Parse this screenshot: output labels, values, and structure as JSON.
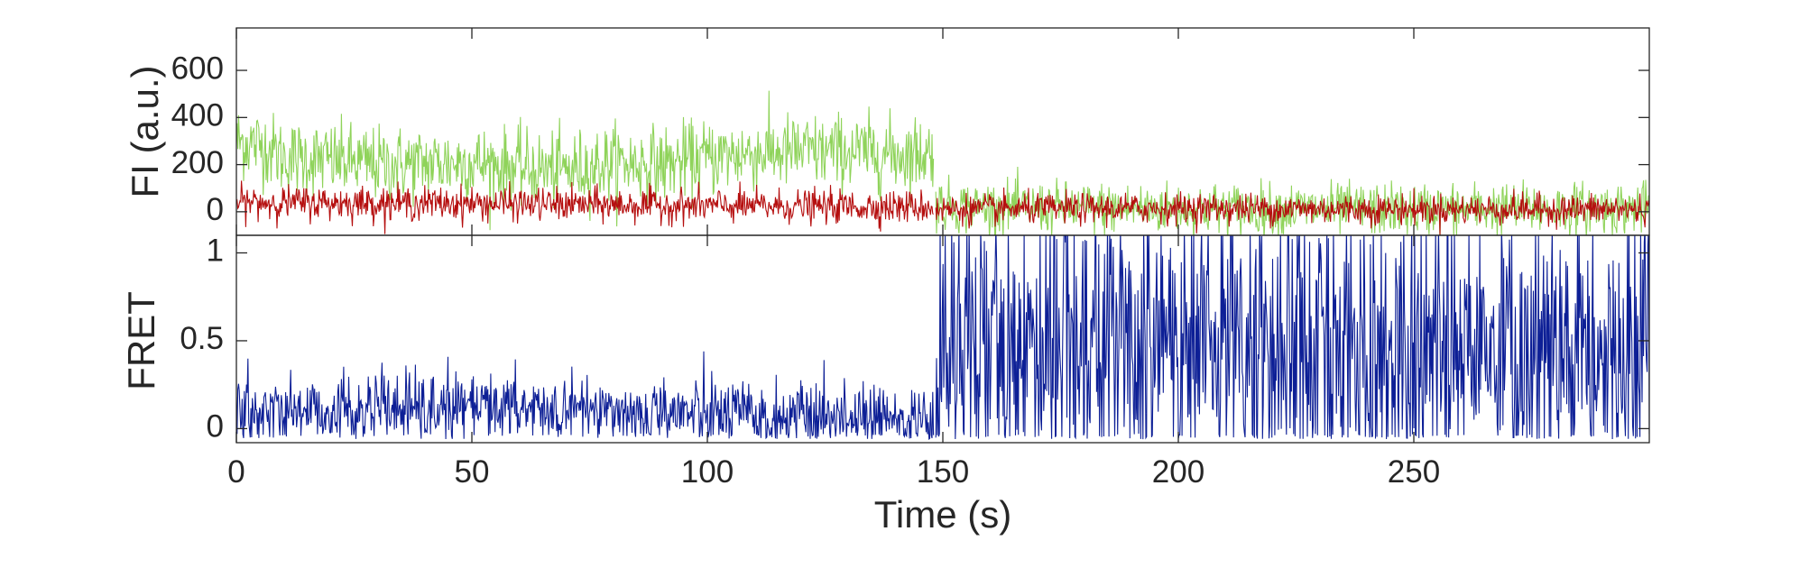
{
  "chart_data": [
    {
      "type": "line",
      "ylabel": "FI (a.u.)",
      "xlabel": "",
      "xlim": [
        0,
        300
      ],
      "ylim": [
        -100,
        780
      ],
      "yticks": [
        0,
        200,
        400,
        600
      ],
      "ytick_labels": [
        "0",
        "200",
        "400",
        "600"
      ],
      "xticks": [
        0,
        50,
        100,
        150,
        200,
        250
      ],
      "xtick_labels": [],
      "grid": false,
      "series": [
        {
          "color": "#8fd35a",
          "segments": [
            {
              "x": [
                0,
                3,
                6,
                10,
                20,
                30,
                40,
                50,
                60,
                70,
                80,
                90,
                100,
                110,
                120,
                130,
                140,
                148
              ],
              "y": [
                300,
                290,
                280,
                230,
                220,
                200,
                205,
                210,
                185,
                175,
                210,
                200,
                230,
                250,
                255,
                255,
                245,
                250
              ]
            },
            {
              "x": [
                148.5,
                155,
                175,
                200,
                225,
                250,
                275,
                300
              ],
              "y": [
                30,
                20,
                15,
                15,
                10,
                10,
                12,
                15
              ]
            }
          ],
          "noise": [
            80,
            55
          ]
        },
        {
          "color": "#b50e0e",
          "segments": [
            {
              "x": [
                0,
                50,
                100,
                148
              ],
              "y": [
                40,
                35,
                25,
                20
              ]
            },
            {
              "x": [
                148.5,
                200,
                250,
                300
              ],
              "y": [
                10,
                15,
                10,
                10
              ]
            }
          ],
          "noise": [
            35,
            32
          ]
        }
      ]
    },
    {
      "type": "line",
      "ylabel": "FRET",
      "xlabel": "Time (s)",
      "xlim": [
        0,
        300
      ],
      "ylim": [
        -0.08,
        1.1
      ],
      "yticks": [
        0,
        0.5,
        1
      ],
      "ytick_labels": [
        "0",
        "0.5",
        "1"
      ],
      "xticks": [
        0,
        50,
        100,
        150,
        200,
        250
      ],
      "xtick_labels": [
        "0",
        "50",
        "100",
        "150",
        "200",
        "250"
      ],
      "grid": false,
      "series": [
        {
          "color": "#0d1f96",
          "segments": [
            {
              "x": [
                0,
                50,
                100,
                148
              ],
              "y": [
                0.1,
                0.12,
                0.08,
                0.04
              ]
            },
            {
              "x": [
                148.5,
                200,
                250,
                300
              ],
              "y": [
                0.45,
                0.5,
                0.45,
                0.45
              ]
            }
          ],
          "noise": [
            0.1,
            0.45
          ],
          "clip_at_top": true
        }
      ]
    }
  ]
}
